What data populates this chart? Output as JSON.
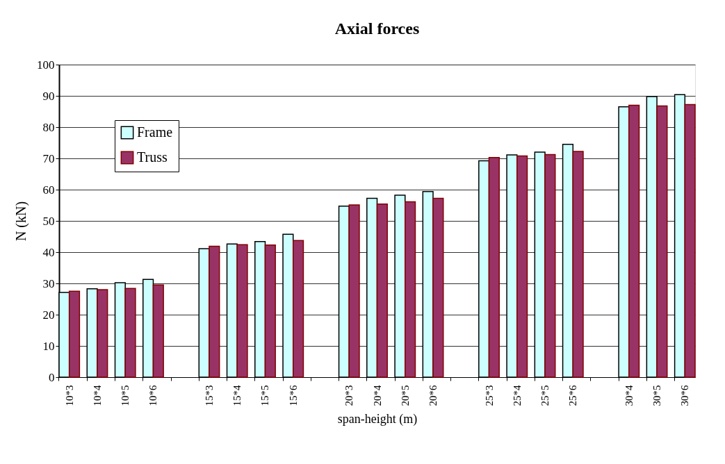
{
  "chart_data": {
    "type": "bar",
    "title": "Axial forces",
    "xlabel": "span-height (m)",
    "ylabel": "N (kN)",
    "categories": [
      "10*3",
      "10*4",
      "10*5",
      "10*6",
      null,
      "15*3",
      "15*4",
      "15*5",
      "15*6",
      null,
      "20*3",
      "20*4",
      "20*5",
      "20*6",
      null,
      "25*3",
      "25*4",
      "25*5",
      "25*6",
      null,
      "30*4",
      "30*5",
      "30*6"
    ],
    "series": [
      {
        "name": "Frame",
        "color": "#ccffff",
        "values": [
          27.1,
          28.3,
          30.2,
          31.3,
          null,
          41.1,
          42.6,
          43.4,
          45.7,
          null,
          54.7,
          57.2,
          58.2,
          59.4,
          null,
          69.2,
          71.1,
          72.0,
          74.5,
          null,
          86.5,
          89.8,
          90.4
        ]
      },
      {
        "name": "Truss",
        "color": "#993366",
        "values": [
          27.5,
          28.0,
          28.4,
          29.5,
          null,
          41.9,
          42.4,
          42.3,
          43.7,
          null,
          55.1,
          55.4,
          56.1,
          57.2,
          null,
          70.3,
          70.8,
          71.2,
          72.2,
          null,
          87.0,
          86.8,
          87.2
        ]
      }
    ],
    "ylim": [
      0,
      100
    ],
    "yticks": [
      0,
      10,
      20,
      30,
      40,
      50,
      60,
      70,
      80,
      90,
      100
    ],
    "grid": "y",
    "legend": "top left"
  }
}
